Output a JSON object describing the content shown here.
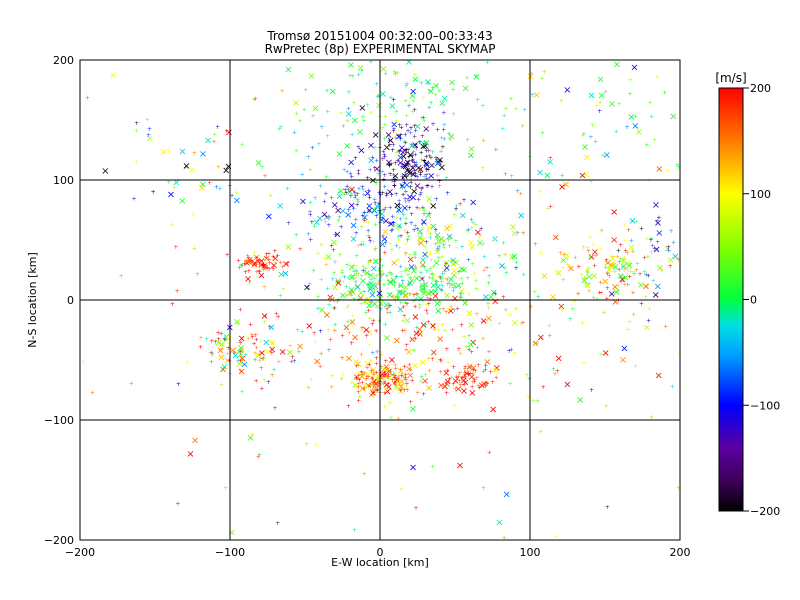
{
  "chart_data": {
    "type": "scatter",
    "title": "Tromsø 20151004 00:32:00–00:33:43",
    "subtitle": "RwPretec (8p) EXPERIMENTAL SKYMAP",
    "xlabel": "E-W location [km]",
    "ylabel": "N-S location [km]",
    "xlim": [
      -200,
      200
    ],
    "ylim": [
      -200,
      200
    ],
    "xticks": [
      -200,
      -100,
      0,
      100,
      200
    ],
    "yticks": [
      -200,
      -100,
      0,
      100,
      200
    ],
    "grid": true,
    "colorbar": {
      "label": "[m/s]",
      "range": [
        -200,
        200
      ],
      "ticks": [
        -200,
        -100,
        0,
        100,
        200
      ],
      "colormap": "rainbow-black-to-red"
    },
    "markers": {
      "plus": "+",
      "cross": "×"
    },
    "clusters": [
      {
        "x": 20,
        "y": 115,
        "sx": 12,
        "sy": 18,
        "n": 190,
        "v": -155,
        "sv": 55
      },
      {
        "x": 15,
        "y": 160,
        "sx": 45,
        "sy": 30,
        "n": 150,
        "v": 5,
        "sv": 35
      },
      {
        "x": -10,
        "y": 75,
        "sx": 22,
        "sy": 16,
        "n": 150,
        "v": -70,
        "sv": 45
      },
      {
        "x": 30,
        "y": 40,
        "sx": 28,
        "sy": 18,
        "n": 160,
        "v": 40,
        "sv": 60
      },
      {
        "x": 15,
        "y": 12,
        "sx": 35,
        "sy": 10,
        "n": 200,
        "v": 15,
        "sv": 30
      },
      {
        "x": 0,
        "y": -65,
        "sx": 12,
        "sy": 8,
        "n": 150,
        "v": 170,
        "sv": 60
      },
      {
        "x": 60,
        "y": -65,
        "sx": 10,
        "sy": 9,
        "n": 70,
        "v": 185,
        "sv": 25
      },
      {
        "x": 10,
        "y": -25,
        "sx": 45,
        "sy": 25,
        "n": 160,
        "v": 150,
        "sv": 70
      },
      {
        "x": -90,
        "y": -40,
        "sx": 15,
        "sy": 12,
        "n": 90,
        "v": 120,
        "sv": 110
      },
      {
        "x": -80,
        "y": 30,
        "sx": 8,
        "sy": 5,
        "n": 60,
        "v": 190,
        "sv": 25
      },
      {
        "x": 150,
        "y": 25,
        "sx": 22,
        "sy": 15,
        "n": 130,
        "v": 110,
        "sv": 70
      },
      {
        "x": 140,
        "y": 150,
        "sx": 35,
        "sy": 35,
        "n": 60,
        "v": 20,
        "sv": 50
      },
      {
        "x": 40,
        "y": 0,
        "sx": 110,
        "sy": 95,
        "n": 260,
        "v": 70,
        "sv": 110
      },
      {
        "x": -120,
        "y": 130,
        "sx": 30,
        "sy": 30,
        "n": 40,
        "v": 30,
        "sv": 140
      },
      {
        "x": 180,
        "y": 40,
        "sx": 10,
        "sy": 25,
        "n": 30,
        "v": -80,
        "sv": 80
      }
    ]
  }
}
